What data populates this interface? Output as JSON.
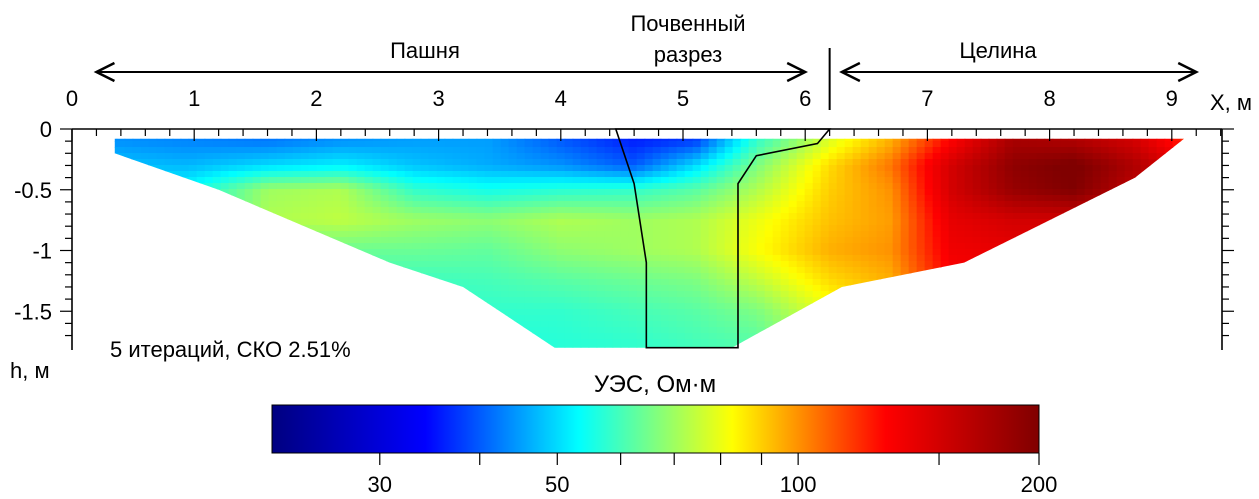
{
  "chart_data": {
    "type": "heatmap",
    "title": "",
    "xlabel": "X, м",
    "ylabel": "h, м",
    "x_ticks": [
      0,
      1,
      2,
      3,
      4,
      5,
      6,
      7,
      8,
      9
    ],
    "y_ticks": [
      0,
      -0.5,
      -1,
      -1.5
    ],
    "y_tick_labels": [
      "0",
      "-0.5",
      "-1",
      "-1.5"
    ],
    "xlim": [
      0,
      9.5
    ],
    "ylim": [
      -1.8,
      0
    ],
    "annotations": {
      "zone_left": "Пашня",
      "zone_pit_line1": "Почвенный",
      "zone_pit_line2": "разрез",
      "zone_right": "Целина",
      "iterations": "5 итераций, СКО 2.51%"
    },
    "zones": [
      {
        "name": "Пашня",
        "x_from": 0.2,
        "x_to": 6.0
      },
      {
        "name": "Целина",
        "x_from": 6.3,
        "x_to": 9.2
      }
    ],
    "divider_x": 6.2,
    "section_outline": [
      [
        0.35,
        -0.08
      ],
      [
        4.0,
        -0.08
      ],
      [
        9.1,
        -0.08
      ],
      [
        8.7,
        -0.4
      ],
      [
        7.3,
        -1.1
      ],
      [
        6.3,
        -1.3
      ],
      [
        5.4,
        -1.8
      ],
      [
        3.95,
        -1.8
      ],
      [
        3.2,
        -1.3
      ],
      [
        2.6,
        -1.1
      ],
      [
        1.2,
        -0.5
      ],
      [
        0.35,
        -0.2
      ]
    ],
    "soil_pit_outline": [
      [
        4.45,
        0.0
      ],
      [
        6.2,
        0.0
      ],
      [
        6.1,
        -0.12
      ],
      [
        5.6,
        -0.22
      ],
      [
        5.45,
        -0.45
      ],
      [
        5.45,
        -1.8
      ],
      [
        4.7,
        -1.8
      ],
      [
        4.7,
        -1.1
      ],
      [
        4.6,
        -0.45
      ]
    ],
    "resistivity_grid": {
      "x": [
        0.35,
        0.95,
        1.6,
        2.2,
        2.8,
        3.4,
        4.0,
        4.6,
        5.1,
        5.6,
        6.2,
        6.7,
        7.2,
        7.7,
        8.2,
        8.7,
        9.1
      ],
      "y": [
        -0.1,
        -0.3,
        -0.5,
        -0.75,
        -1.0,
        -1.25,
        -1.5,
        -1.75
      ],
      "values": [
        [
          44,
          43,
          42,
          44,
          45,
          45,
          40,
          36,
          38,
          58,
          78,
          95,
          130,
          175,
          170,
          150,
          120
        ],
        [
          48,
          47,
          50,
          52,
          48,
          46,
          44,
          40,
          50,
          66,
          88,
          105,
          150,
          190,
          205,
          170,
          140
        ],
        [
          52,
          54,
          70,
          72,
          58,
          55,
          57,
          58,
          62,
          72,
          90,
          100,
          150,
          185,
          200,
          160,
          140
        ],
        [
          52,
          55,
          72,
          74,
          70,
          68,
          72,
          70,
          72,
          80,
          92,
          98,
          140,
          150,
          150,
          140,
          130
        ],
        [
          52,
          55,
          62,
          64,
          64,
          63,
          68,
          70,
          72,
          82,
          95,
          100,
          135,
          140,
          140,
          135,
          130
        ],
        [
          52,
          55,
          58,
          58,
          59,
          60,
          62,
          64,
          66,
          74,
          88,
          95,
          130,
          135,
          135,
          130,
          125
        ],
        [
          52,
          55,
          56,
          56,
          57,
          58,
          58,
          60,
          62,
          66,
          80,
          90,
          120,
          125,
          125,
          120,
          120
        ],
        [
          52,
          55,
          55,
          55,
          56,
          56,
          57,
          58,
          60,
          62,
          75,
          85,
          110,
          115,
          115,
          115,
          115
        ]
      ]
    },
    "colorbar": {
      "label": "УЭС, Ом·м",
      "min": 22,
      "max": 200,
      "scale": "log",
      "tick_values": [
        30,
        50,
        100,
        200
      ],
      "tick_labels": [
        "30",
        "50",
        "100",
        "200"
      ],
      "minor_tick_values": [
        40,
        60,
        70,
        80,
        90,
        150
      ],
      "colormap": [
        "#000080",
        "#0000ff",
        "#00ffff",
        "#ffff00",
        "#ff0000",
        "#800000"
      ]
    }
  }
}
